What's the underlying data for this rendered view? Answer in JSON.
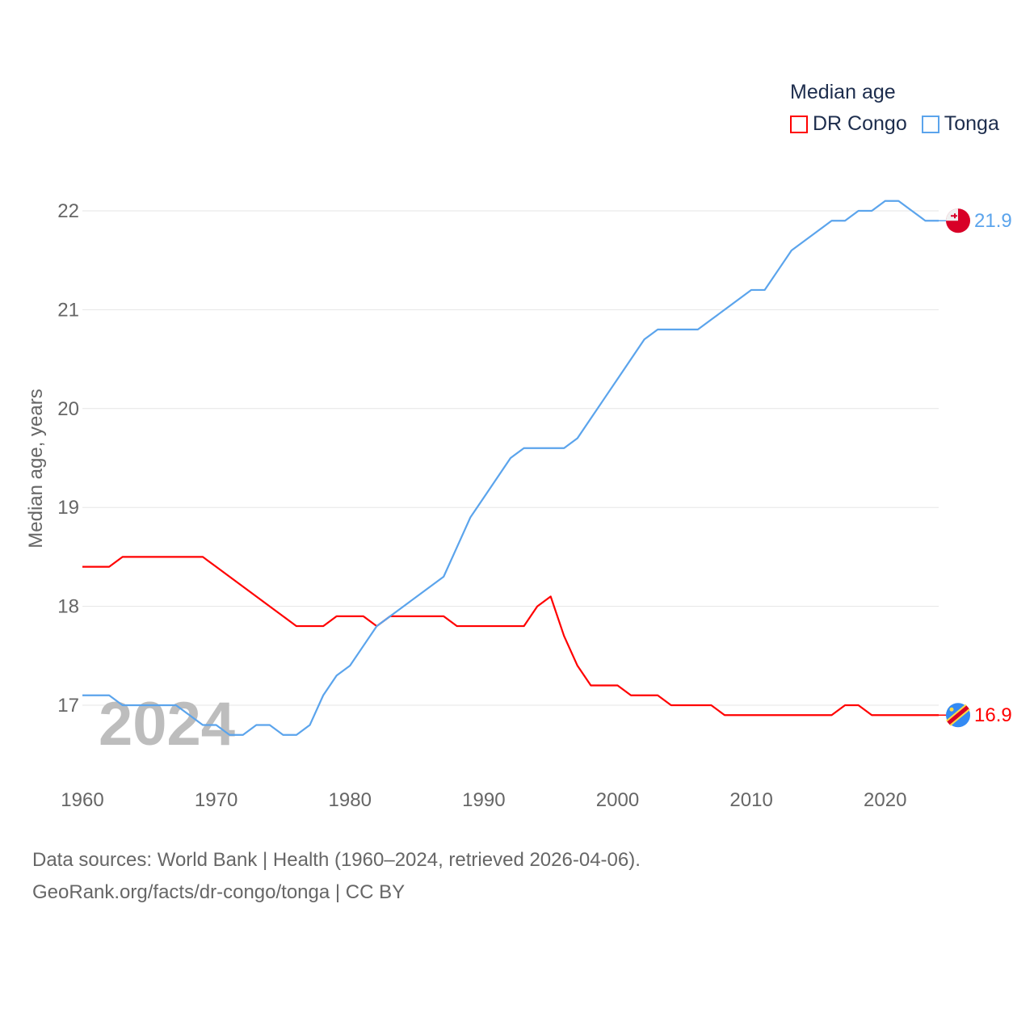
{
  "chart_data": {
    "type": "line",
    "title": "",
    "legend_title": "Median age",
    "legend_placement": "top-right",
    "ylabel": "Median age, years",
    "xlabel": "",
    "xlim": [
      1960,
      2024
    ],
    "ylim": [
      16.4,
      22.4
    ],
    "x_ticks": [
      1960,
      1970,
      1980,
      1990,
      2000,
      2010,
      2020
    ],
    "y_ticks": [
      17,
      18,
      19,
      20,
      21,
      22
    ],
    "grid": true,
    "year_watermark": "2024",
    "x": [
      1960,
      1961,
      1962,
      1963,
      1964,
      1965,
      1966,
      1967,
      1968,
      1969,
      1970,
      1971,
      1972,
      1973,
      1974,
      1975,
      1976,
      1977,
      1978,
      1979,
      1980,
      1981,
      1982,
      1983,
      1984,
      1985,
      1986,
      1987,
      1988,
      1989,
      1990,
      1991,
      1992,
      1993,
      1994,
      1995,
      1996,
      1997,
      1998,
      1999,
      2000,
      2001,
      2002,
      2003,
      2004,
      2005,
      2006,
      2007,
      2008,
      2009,
      2010,
      2011,
      2012,
      2013,
      2014,
      2015,
      2016,
      2017,
      2018,
      2019,
      2020,
      2021,
      2022,
      2023,
      2024
    ],
    "series": [
      {
        "name": "DR Congo",
        "color": "#ff0000",
        "end_label": "16.9",
        "values": [
          18.4,
          18.4,
          18.4,
          18.5,
          18.5,
          18.5,
          18.5,
          18.5,
          18.5,
          18.5,
          18.4,
          18.3,
          18.2,
          18.1,
          18.0,
          17.9,
          17.8,
          17.8,
          17.8,
          17.9,
          17.9,
          17.9,
          17.8,
          17.9,
          17.9,
          17.9,
          17.9,
          17.9,
          17.8,
          17.8,
          17.8,
          17.8,
          17.8,
          17.8,
          18.0,
          18.1,
          17.7,
          17.4,
          17.2,
          17.2,
          17.2,
          17.1,
          17.1,
          17.1,
          17.0,
          17.0,
          17.0,
          17.0,
          16.9,
          16.9,
          16.9,
          16.9,
          16.9,
          16.9,
          16.9,
          16.9,
          16.9,
          17.0,
          17.0,
          16.9,
          16.9,
          16.9,
          16.9,
          16.9,
          16.9
        ]
      },
      {
        "name": "Tonga",
        "color": "#5ba4ec",
        "end_label": "21.9",
        "values": [
          17.1,
          17.1,
          17.1,
          17.0,
          17.0,
          17.0,
          17.0,
          17.0,
          16.9,
          16.8,
          16.8,
          16.7,
          16.7,
          16.8,
          16.8,
          16.7,
          16.7,
          16.8,
          17.1,
          17.3,
          17.4,
          17.6,
          17.8,
          17.9,
          18.0,
          18.1,
          18.2,
          18.3,
          18.6,
          18.9,
          19.1,
          19.3,
          19.5,
          19.6,
          19.6,
          19.6,
          19.6,
          19.7,
          19.9,
          20.1,
          20.3,
          20.5,
          20.7,
          20.8,
          20.8,
          20.8,
          20.8,
          20.9,
          21.0,
          21.1,
          21.2,
          21.2,
          21.4,
          21.6,
          21.7,
          21.8,
          21.9,
          21.9,
          22.0,
          22.0,
          22.1,
          22.1,
          22.0,
          21.9,
          21.9
        ]
      }
    ]
  },
  "footer": {
    "line1": "Data sources: World Bank | Health (1960–2024, retrieved 2026-04-06).",
    "line2": "GeoRank.org/facts/dr-congo/tonga | CC BY"
  }
}
